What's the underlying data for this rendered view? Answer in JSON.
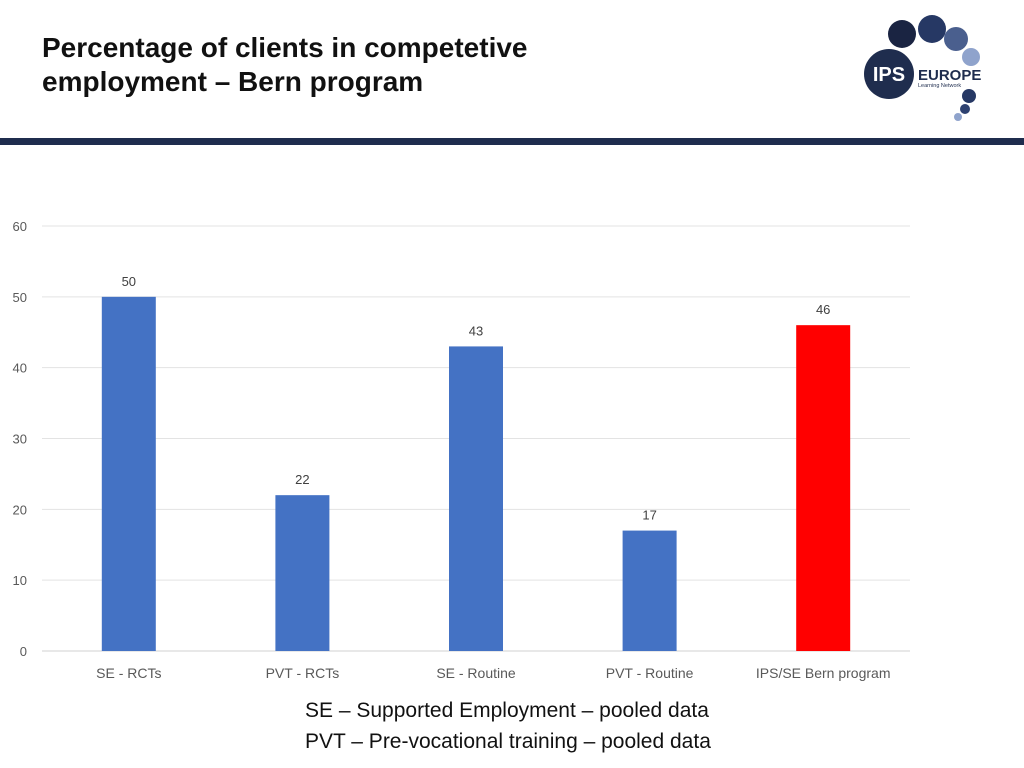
{
  "slide": {
    "title_line1": "Percentage of clients in competetive",
    "title_line2": "employment – Bern program"
  },
  "logo": {
    "ips": "IPS",
    "europe": "EUROPE",
    "tagline": "Learning Network"
  },
  "colors": {
    "header_rule": "#1f2d4e",
    "bar_default": "#4472c4",
    "bar_highlight": "#ff0000",
    "logo_navy": "#1f2d4e"
  },
  "chart_data": {
    "type": "bar",
    "title": "",
    "xlabel": "",
    "ylabel": "",
    "categories": [
      "SE - RCTs",
      "PVT - RCTs",
      "SE - Routine",
      "PVT - Routine",
      "IPS/SE Bern program"
    ],
    "values": [
      50,
      22,
      43,
      17,
      46
    ],
    "highlight_index": 4,
    "ylim": [
      0,
      60
    ],
    "yticks": [
      0,
      10,
      20,
      30,
      40,
      50,
      60
    ],
    "grid": true,
    "legend": "none",
    "data_labels": true
  },
  "footnotes": [
    "SE – Supported Employment – pooled data",
    "PVT – Pre-vocational training – pooled data"
  ]
}
